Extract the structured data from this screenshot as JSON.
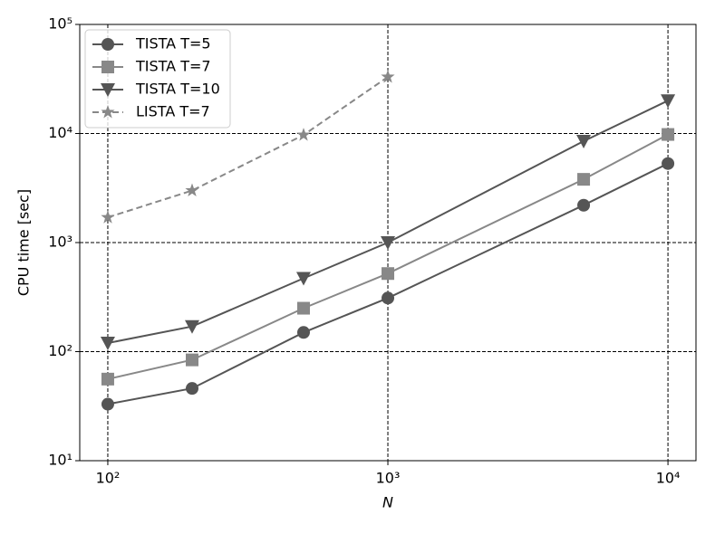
{
  "chart_data": {
    "type": "line",
    "x_label": "N",
    "y_label": "CPU time [sec]",
    "x": [
      100,
      200,
      500,
      1000,
      5000,
      10000
    ],
    "series": [
      {
        "name": "TISTA T=5",
        "color": "#555555",
        "marker": "circle",
        "linestyle": "solid",
        "values": [
          33,
          46,
          150,
          310,
          2200,
          5300
        ]
      },
      {
        "name": "TISTA T=7",
        "color": "#888888",
        "marker": "square",
        "linestyle": "solid",
        "values": [
          56,
          84,
          250,
          520,
          3800,
          9800
        ]
      },
      {
        "name": "TISTA T=10",
        "color": "#555555",
        "marker": "triangle-down",
        "linestyle": "solid",
        "values": [
          120,
          170,
          470,
          1000,
          8500,
          20000
        ]
      },
      {
        "name": "LISTA T=7",
        "color": "#888888",
        "marker": "star",
        "linestyle": "dashed",
        "values": [
          1700,
          3000,
          9700,
          33000,
          null,
          null
        ]
      }
    ],
    "xscale": "log",
    "yscale": "log",
    "xlim": [
      79.4,
      12590
    ],
    "ylim": [
      10,
      100000
    ],
    "xticks": [
      {
        "value": 100,
        "label": "10²"
      },
      {
        "value": 1000,
        "label": "10³"
      },
      {
        "value": 10000,
        "label": "10⁴"
      }
    ],
    "yticks": [
      {
        "value": 10,
        "label": "10¹"
      },
      {
        "value": 100,
        "label": "10²"
      },
      {
        "value": 1000,
        "label": "10³"
      },
      {
        "value": 10000,
        "label": "10⁴"
      },
      {
        "value": 100000,
        "label": "10⁵"
      }
    ],
    "grid": true,
    "legend_loc": "upper left"
  }
}
